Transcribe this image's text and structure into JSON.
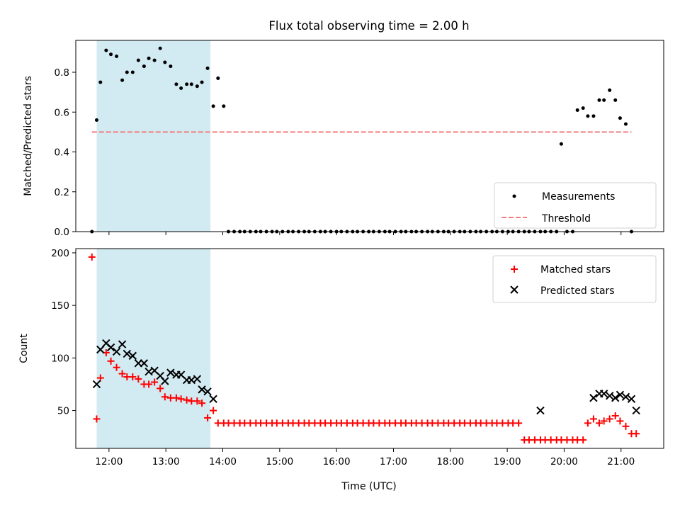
{
  "chart_data": [
    {
      "type": "scatter",
      "title": "Flux total observing time = 2.00 h",
      "xlabel": "",
      "ylabel": "Matched/Predicted stars",
      "xlim": [
        "11:25",
        "21:45"
      ],
      "ylim": [
        0,
        0.96
      ],
      "yticks": [
        0.0,
        0.2,
        0.4,
        0.6,
        0.8
      ],
      "yticklabels": [
        "0.0",
        "0.2",
        "0.4",
        "0.6",
        "0.8"
      ],
      "shaded_interval": [
        "11:47",
        "13:47"
      ],
      "shade_color": "#add8e6",
      "legend_position": "lower-right",
      "series": [
        {
          "name": "Measurements",
          "color": "#000000",
          "marker": "dot",
          "x": [
            "11:42",
            "11:47",
            "11:51",
            "11:57",
            "12:02",
            "12:08",
            "12:14",
            "12:19",
            "12:25",
            "12:31",
            "12:37",
            "12:42",
            "12:48",
            "12:54",
            "12:59",
            "13:05",
            "13:11",
            "13:16",
            "13:22",
            "13:27",
            "13:33",
            "13:38",
            "13:44",
            "13:50",
            "13:55",
            "14:01",
            "14:06",
            "14:12",
            "14:18",
            "14:23",
            "14:29",
            "14:35",
            "14:40",
            "14:46",
            "14:52",
            "14:57",
            "15:03",
            "15:09",
            "15:14",
            "15:20",
            "15:26",
            "15:31",
            "15:37",
            "15:43",
            "15:48",
            "15:54",
            "16:00",
            "16:05",
            "16:11",
            "16:17",
            "16:22",
            "16:28",
            "16:34",
            "16:39",
            "16:45",
            "16:51",
            "16:56",
            "17:02",
            "17:08",
            "17:13",
            "17:19",
            "17:24",
            "17:30",
            "17:36",
            "17:41",
            "17:47",
            "17:53",
            "17:58",
            "18:04",
            "18:10",
            "18:15",
            "18:21",
            "18:27",
            "18:32",
            "18:38",
            "18:44",
            "18:49",
            "18:55",
            "19:01",
            "19:06",
            "19:12",
            "19:18",
            "19:23",
            "19:29",
            "19:35",
            "19:40",
            "19:46",
            "19:52",
            "19:57",
            "20:03",
            "20:09",
            "20:14",
            "20:20",
            "20:25",
            "20:31",
            "20:37",
            "20:42",
            "20:48",
            "20:54",
            "20:59",
            "21:05",
            "21:11"
          ],
          "y": [
            0.0,
            0.56,
            0.75,
            0.91,
            0.89,
            0.88,
            0.76,
            0.8,
            0.8,
            0.86,
            0.83,
            0.87,
            0.86,
            0.92,
            0.85,
            0.83,
            0.74,
            0.72,
            0.74,
            0.74,
            0.73,
            0.75,
            0.82,
            0.63,
            0.77,
            0.63,
            0.0,
            0.0,
            0.0,
            0.0,
            0.0,
            0.0,
            0.0,
            0.0,
            0.0,
            0.0,
            0.0,
            0.0,
            0.0,
            0.0,
            0.0,
            0.0,
            0.0,
            0.0,
            0.0,
            0.0,
            0.0,
            0.0,
            0.0,
            0.0,
            0.0,
            0.0,
            0.0,
            0.0,
            0.0,
            0.0,
            0.0,
            0.0,
            0.0,
            0.0,
            0.0,
            0.0,
            0.0,
            0.0,
            0.0,
            0.0,
            0.0,
            0.0,
            0.0,
            0.0,
            0.0,
            0.0,
            0.0,
            0.0,
            0.0,
            0.0,
            0.0,
            0.0,
            0.0,
            0.0,
            0.0,
            0.0,
            0.0,
            0.0,
            0.0,
            0.0,
            0.0,
            0.0,
            0.44,
            0.0,
            0.0,
            0.61,
            0.62,
            0.58,
            0.58,
            0.66,
            0.66,
            0.71,
            0.66,
            0.57,
            0.54,
            0.0
          ]
        },
        {
          "name": "Threshold",
          "color": "#f08080",
          "style": "dashed",
          "x": [
            "11:42",
            "21:11"
          ],
          "y": [
            0.5,
            0.5
          ]
        }
      ]
    },
    {
      "type": "scatter",
      "title": "",
      "xlabel": "Time (UTC)",
      "ylabel": "Count",
      "xlim": [
        "11:25",
        "21:45"
      ],
      "ylim": [
        14,
        204
      ],
      "xticks": [
        "12:00",
        "13:00",
        "14:00",
        "15:00",
        "16:00",
        "17:00",
        "18:00",
        "19:00",
        "20:00",
        "21:00"
      ],
      "yticks": [
        50,
        100,
        150,
        200
      ],
      "yticklabels": [
        "50",
        "100",
        "150",
        "200"
      ],
      "shaded_interval": [
        "11:47",
        "13:47"
      ],
      "shade_color": "#add8e6",
      "legend_position": "upper-right",
      "series": [
        {
          "name": "Matched stars",
          "color": "#ff0000",
          "marker": "plus",
          "x": [
            "11:42",
            "11:47",
            "11:51",
            "11:57",
            "12:02",
            "12:08",
            "12:14",
            "12:19",
            "12:25",
            "12:31",
            "12:37",
            "12:42",
            "12:48",
            "12:54",
            "12:59",
            "13:05",
            "13:11",
            "13:16",
            "13:22",
            "13:27",
            "13:33",
            "13:38",
            "13:44",
            "13:50",
            "13:55",
            "14:01",
            "14:06",
            "14:12",
            "14:18",
            "14:23",
            "14:29",
            "14:35",
            "14:40",
            "14:46",
            "14:52",
            "14:57",
            "15:03",
            "15:09",
            "15:14",
            "15:20",
            "15:26",
            "15:31",
            "15:37",
            "15:43",
            "15:48",
            "15:54",
            "16:00",
            "16:05",
            "16:11",
            "16:17",
            "16:22",
            "16:28",
            "16:34",
            "16:39",
            "16:45",
            "16:51",
            "16:56",
            "17:02",
            "17:08",
            "17:13",
            "17:19",
            "17:24",
            "17:30",
            "17:36",
            "17:41",
            "17:47",
            "17:53",
            "17:58",
            "18:04",
            "18:10",
            "18:15",
            "18:21",
            "18:27",
            "18:32",
            "18:38",
            "18:44",
            "18:49",
            "18:55",
            "19:01",
            "19:06",
            "19:12",
            "19:18",
            "19:23",
            "19:29",
            "19:35",
            "19:40",
            "19:46",
            "19:52",
            "19:57",
            "20:03",
            "20:09",
            "20:14",
            "20:20",
            "20:25",
            "20:31",
            "20:37",
            "20:42",
            "20:48",
            "20:54",
            "20:59",
            "21:05",
            "21:11",
            "21:16"
          ],
          "y": [
            196,
            42,
            81,
            105,
            97,
            91,
            85,
            82,
            82,
            80,
            75,
            75,
            77,
            71,
            63,
            62,
            62,
            61,
            60,
            59,
            59,
            57,
            43,
            50,
            38,
            38,
            38,
            38,
            38,
            38,
            38,
            38,
            38,
            38,
            38,
            38,
            38,
            38,
            38,
            38,
            38,
            38,
            38,
            38,
            38,
            38,
            38,
            38,
            38,
            38,
            38,
            38,
            38,
            38,
            38,
            38,
            38,
            38,
            38,
            38,
            38,
            38,
            38,
            38,
            38,
            38,
            38,
            38,
            38,
            38,
            38,
            38,
            38,
            38,
            38,
            38,
            38,
            38,
            38,
            38,
            38,
            22,
            22,
            22,
            22,
            22,
            22,
            22,
            22,
            22,
            22,
            22,
            22,
            38,
            42,
            38,
            40,
            42,
            45,
            40,
            35,
            28,
            28
          ]
        },
        {
          "name": "Predicted stars",
          "color": "#000000",
          "marker": "x",
          "x": [
            "11:47",
            "11:51",
            "11:57",
            "12:02",
            "12:08",
            "12:14",
            "12:19",
            "12:25",
            "12:31",
            "12:37",
            "12:42",
            "12:48",
            "12:54",
            "12:59",
            "13:05",
            "13:11",
            "13:16",
            "13:22",
            "13:27",
            "13:33",
            "13:38",
            "13:44",
            "13:50",
            "19:35",
            "20:31",
            "20:37",
            "20:42",
            "20:48",
            "20:54",
            "20:59",
            "21:05",
            "21:11",
            "21:16"
          ],
          "y": [
            75,
            108,
            114,
            110,
            106,
            113,
            104,
            102,
            95,
            95,
            87,
            88,
            83,
            78,
            86,
            84,
            84,
            79,
            79,
            80,
            70,
            68,
            61,
            50,
            62,
            66,
            66,
            64,
            62,
            65,
            63,
            61,
            50
          ]
        }
      ]
    }
  ]
}
